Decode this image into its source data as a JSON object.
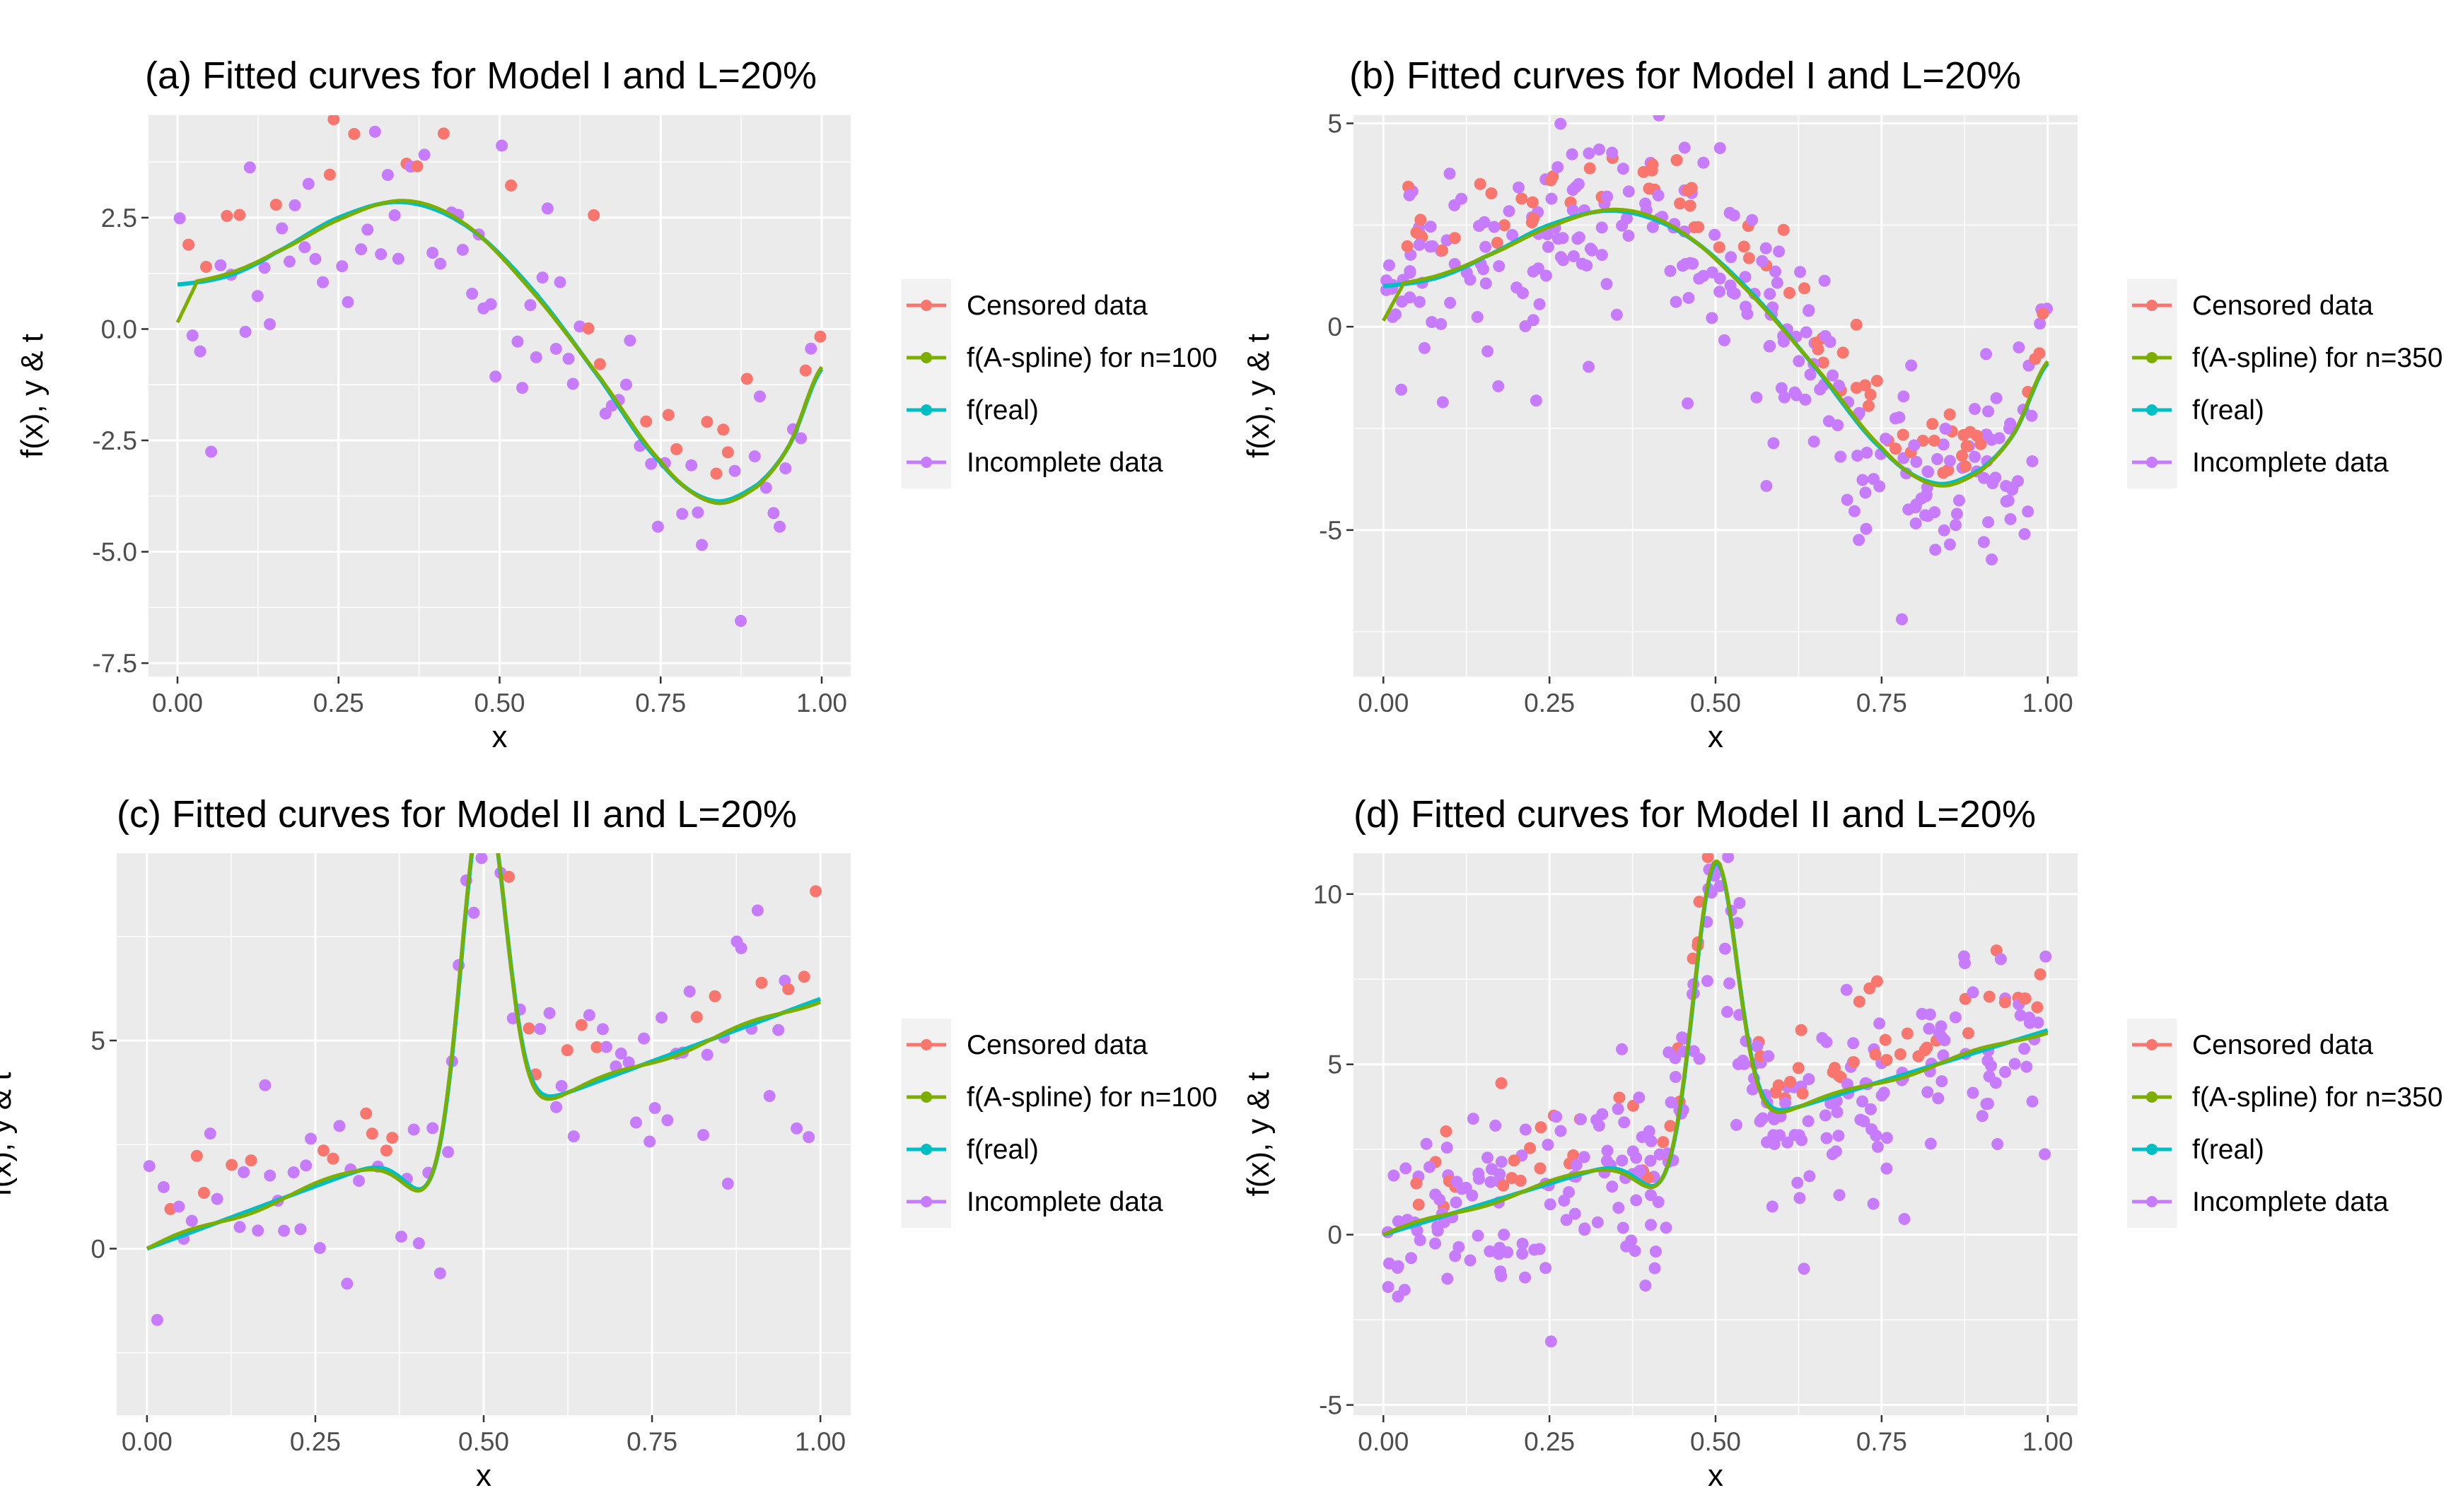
{
  "colors": {
    "censored": "#F8766D",
    "aspline": "#7CAE00",
    "real": "#00BFC4",
    "incomplete": "#C77CFF",
    "panel_bg": "#EBEBEB"
  },
  "chart_data": [
    {
      "type": "scatter",
      "title": "(a) Fitted curves for Model I and L=20%",
      "xlabel": "x",
      "ylabel": "f(x), y & t",
      "xlim": [
        -0.045,
        1.045
      ],
      "ylim": [
        -7.8,
        4.8
      ],
      "xticks": [
        0,
        0.25,
        0.5,
        0.75,
        1
      ],
      "xtick_labels": [
        "0.00",
        "0.25",
        "0.50",
        "0.75",
        "1.00"
      ],
      "yticks": [
        -7.5,
        -5,
        -2.5,
        0,
        2.5
      ],
      "ytick_labels": [
        "-7.5",
        "-5.0",
        "-2.5",
        "0.0",
        "2.5"
      ],
      "legend": [
        "Censored data",
        "f(A-spline) for n=100",
        "f(real)",
        "Incomplete data"
      ],
      "legend_position": "right",
      "model": "I",
      "n": 100,
      "seed": 11
    },
    {
      "type": "scatter",
      "title": "(b) Fitted curves for Model I and L=20%",
      "xlabel": "x",
      "ylabel": "f(x), y & t",
      "xlim": [
        -0.045,
        1.045
      ],
      "ylim": [
        -8.6,
        5.2
      ],
      "xticks": [
        0,
        0.25,
        0.5,
        0.75,
        1
      ],
      "xtick_labels": [
        "0.00",
        "0.25",
        "0.50",
        "0.75",
        "1.00"
      ],
      "yticks": [
        -5,
        0,
        5
      ],
      "ytick_labels": [
        "-5",
        "0",
        "5"
      ],
      "legend": [
        "Censored data",
        "f(A-spline) for n=350",
        "f(real)",
        "Incomplete data"
      ],
      "legend_position": "right",
      "model": "I",
      "n": 350,
      "seed": 23
    },
    {
      "type": "scatter",
      "title": "(c) Fitted curves for Model II and L=20%",
      "xlabel": "x",
      "ylabel": "f(x), y & t",
      "xlim": [
        -0.045,
        1.045
      ],
      "ylim": [
        -4.0,
        9.5
      ],
      "xticks": [
        0,
        0.25,
        0.5,
        0.75,
        1
      ],
      "xtick_labels": [
        "0.00",
        "0.25",
        "0.50",
        "0.75",
        "1.00"
      ],
      "yticks": [
        0,
        5
      ],
      "ytick_labels": [
        "0",
        "5"
      ],
      "legend": [
        "Censored data",
        "f(A-spline) for n=100",
        "f(real)",
        "Incomplete data"
      ],
      "legend_position": "right",
      "model": "II",
      "n": 100,
      "seed": 37
    },
    {
      "type": "scatter",
      "title": "(d) Fitted curves for Model II and L=20%",
      "xlabel": "x",
      "ylabel": "f(x), y & t",
      "xlim": [
        -0.045,
        1.045
      ],
      "ylim": [
        -5.3,
        11.2
      ],
      "xticks": [
        0,
        0.25,
        0.5,
        0.75,
        1
      ],
      "xtick_labels": [
        "0.00",
        "0.25",
        "0.50",
        "0.75",
        "1.00"
      ],
      "yticks": [
        -5,
        0,
        5,
        10
      ],
      "ytick_labels": [
        "-5",
        "0",
        "5",
        "10"
      ],
      "legend": [
        "Censored data",
        "f(A-spline) for n=350",
        "f(real)",
        "Incomplete data"
      ],
      "legend_position": "right",
      "model": "II",
      "n": 350,
      "seed": 53
    }
  ]
}
